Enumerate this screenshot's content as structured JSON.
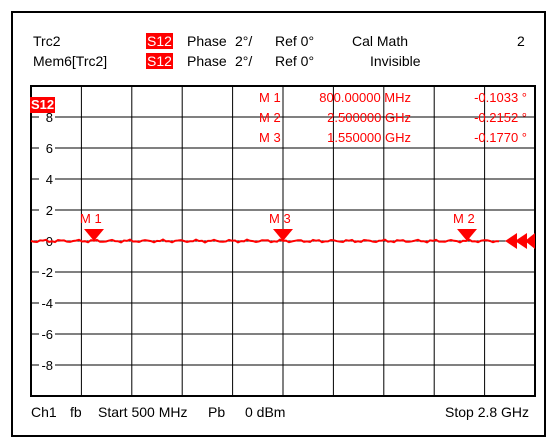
{
  "header": {
    "row1": {
      "trace": "Trc2",
      "param": "S12",
      "format": "Phase",
      "scale": "2°/",
      "ref": "Ref 0°",
      "status": "Cal Math",
      "trace_count": "2"
    },
    "row2": {
      "trace": "Mem6[Trc2]",
      "param": "S12",
      "format": "Phase",
      "scale": "2°/",
      "ref": "Ref 0°",
      "status": "Invisible"
    }
  },
  "plot": {
    "trace_badge": "S12",
    "y_labels": [
      "8",
      "6",
      "4",
      "2",
      "0",
      "-2",
      "-4",
      "-6",
      "-8"
    ],
    "markers": [
      {
        "label": "M 1",
        "stim": "800.00000 MHz",
        "value": "-0.1033 °"
      },
      {
        "label": "M 2",
        "stim": "2.500000 GHz",
        "value": "-0.2152 °"
      },
      {
        "label": "M 3",
        "stim": "1.550000 GHz",
        "value": "-0.1770 °"
      }
    ],
    "marker_tags": [
      "M 1",
      "M 3",
      "M 2"
    ]
  },
  "colors": {
    "trace": "#ff0000",
    "grid": "#000000",
    "background": "#ffffff"
  },
  "footer": {
    "channel": "Ch1",
    "sweep": "fb",
    "start": "Start 500 MHz",
    "power_label": "Pb",
    "power": "0 dBm",
    "stop": "Stop 2.8 GHz"
  }
}
